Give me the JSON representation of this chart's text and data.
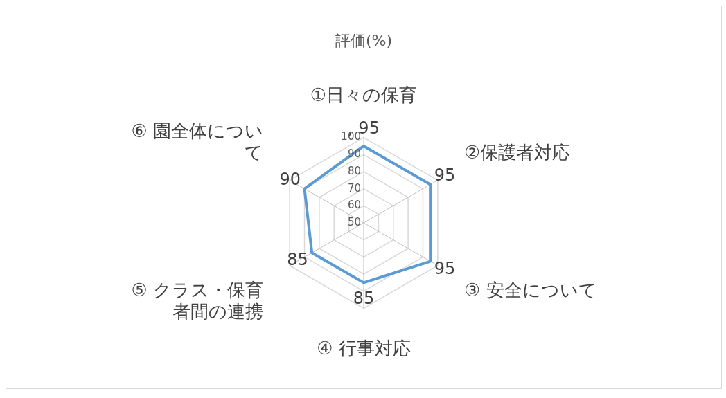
{
  "chart_data": {
    "type": "radar",
    "title": "評価(%)",
    "categories": [
      "①日々の保育",
      "②保護者対応",
      "③ 安全について",
      "④ 行事対応",
      "⑤ クラス・保育者間の連携",
      "⑥ 園全体について"
    ],
    "series": [
      {
        "color": "#5b9bd5",
        "values": [
          95,
          95,
          95,
          85,
          85,
          90
        ],
        "value_labels": [
          ", 95",
          "95",
          "95",
          "85",
          "85",
          "90"
        ]
      }
    ],
    "ylim": [
      50,
      100
    ],
    "yticks": [
      50,
      60,
      70,
      80,
      90,
      100
    ],
    "grid": true,
    "legend": false,
    "marker": "none",
    "line_style": "solid"
  }
}
